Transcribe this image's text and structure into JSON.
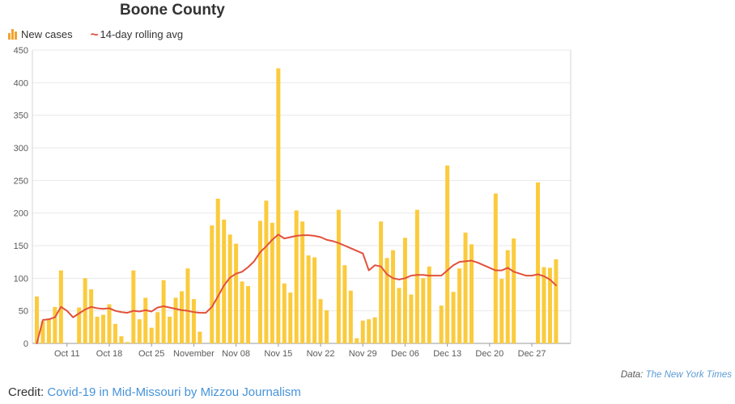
{
  "title": "Boone County",
  "legend": {
    "new_cases_label": "New cases",
    "avg_label": "14-day rolling avg",
    "tilde_glyph": "~"
  },
  "colors": {
    "bar": "#fbcb3d",
    "line": "#e2503c",
    "legend_icon_bar": "#f0a32f",
    "grid": "#e9e9e9",
    "border": "#d6d6d6",
    "baseline": "#9a9a9a",
    "axis_text": "#5a5a5a",
    "title_text": "#333333",
    "link_blue": "#4693d9",
    "data_link_blue": "#5b9bd5"
  },
  "chart_data": {
    "type": "bar",
    "title": "Boone County",
    "ylim": [
      0,
      450
    ],
    "y_ticks": [
      0,
      50,
      100,
      150,
      200,
      250,
      300,
      350,
      400,
      450
    ],
    "grid": "on",
    "legend_position": "top-left",
    "x_tick_labels": [
      "Oct 11",
      "Oct 18",
      "Oct 25",
      "November",
      "Nov 08",
      "Nov 15",
      "Nov 22",
      "Nov 29",
      "Dec 06",
      "Dec 13",
      "Dec 20",
      "Dec 27"
    ],
    "x_tick_indices": [
      5,
      12,
      19,
      26,
      33,
      40,
      47,
      54,
      61,
      68,
      75,
      82
    ],
    "series": [
      {
        "name": "New cases",
        "type": "bar",
        "values": [
          72,
          34,
          38,
          56,
          112,
          0,
          0,
          55,
          100,
          83,
          41,
          44,
          60,
          30,
          11,
          2,
          112,
          37,
          70,
          24,
          48,
          97,
          41,
          70,
          80,
          115,
          68,
          18,
          0,
          181,
          222,
          190,
          167,
          153,
          95,
          88,
          0,
          188,
          219,
          185,
          422,
          92,
          78,
          204,
          187,
          135,
          132,
          68,
          51,
          0,
          205,
          120,
          81,
          8,
          35,
          37,
          40,
          187,
          131,
          143,
          85,
          162,
          75,
          205,
          100,
          118,
          0,
          58,
          273,
          79,
          115,
          170,
          152,
          0,
          0,
          0,
          230,
          99,
          143,
          161,
          0,
          0,
          0,
          247,
          117,
          116,
          129
        ]
      },
      {
        "name": "14-day rolling avg",
        "type": "line",
        "values": [
          0,
          36,
          37,
          40,
          56,
          50,
          40,
          46,
          52,
          56,
          54,
          53,
          54,
          50,
          48,
          47,
          50,
          49,
          51,
          49,
          55,
          57,
          55,
          53,
          51,
          50,
          48,
          47,
          47,
          56,
          72,
          89,
          101,
          107,
          110,
          117,
          126,
          140,
          149,
          159,
          167,
          161,
          163,
          165,
          166,
          166,
          165,
          163,
          159,
          157,
          154,
          150,
          146,
          142,
          138,
          112,
          120,
          118,
          106,
          100,
          98,
          100,
          104,
          105,
          105,
          104,
          104,
          104,
          112,
          120,
          125,
          126,
          127,
          124,
          120,
          116,
          112,
          112,
          116,
          110,
          107,
          104,
          104,
          106,
          103,
          98,
          89
        ]
      }
    ]
  },
  "footer": {
    "credit_prefix": "Credit:",
    "credit_link": "Covid-19 in Mid-Missouri by Mizzou Journalism",
    "data_prefix": "Data:",
    "data_link": "The New York Times"
  }
}
